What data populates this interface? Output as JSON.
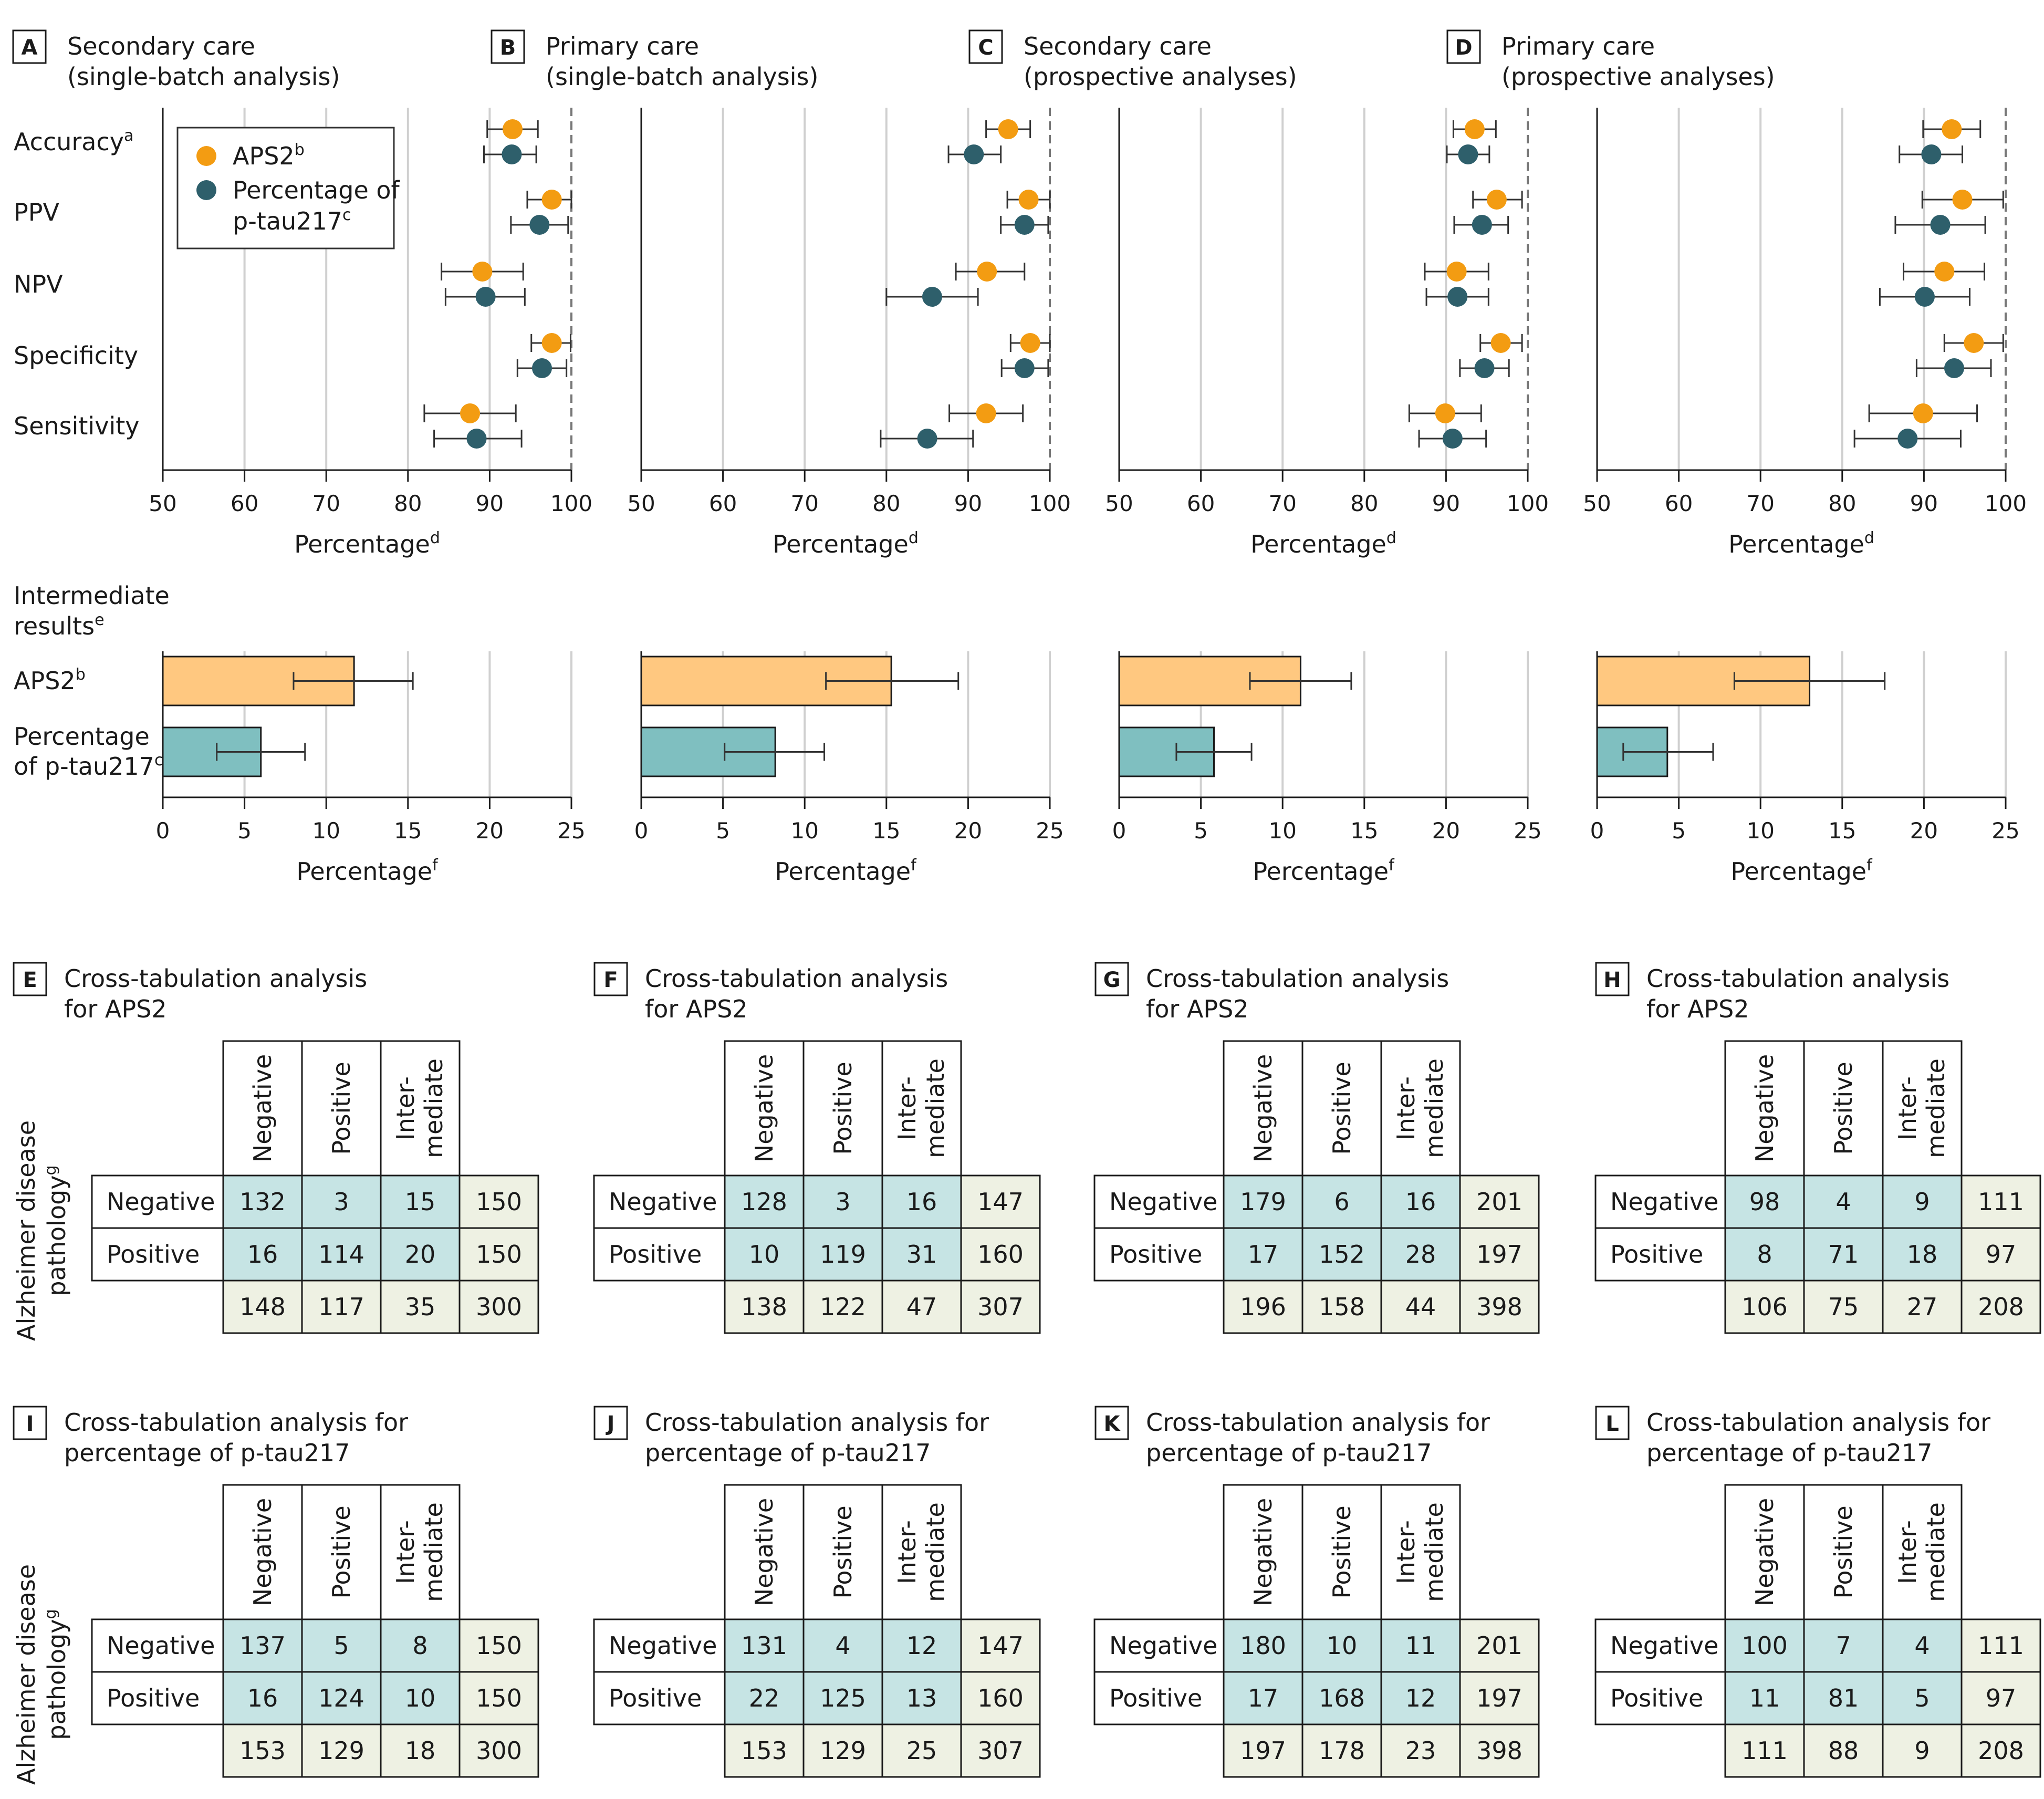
{
  "colors": {
    "aps2": "#F39C12",
    "ptau": "#2E5F6B",
    "aps2_bar": "#FFC880",
    "ptau_bar": "#7FBFC0",
    "table_inner": "#C6E4E4",
    "table_total": "#EEF1E3",
    "grid": "#D0D0D0",
    "axis": "#1a1a1a"
  },
  "chart_data": {
    "metric_labels": [
      "Accuracy",
      "PPV",
      "NPV",
      "Specificity",
      "Sensitivity"
    ],
    "metric_sups": [
      "a",
      "",
      "",
      "",
      ""
    ],
    "legend": {
      "aps2": "APS2",
      "aps2_sup": "b",
      "ptau_line1": "Percentage of",
      "ptau_line2": "p-tau217",
      "ptau_sup": "c"
    },
    "dot_axis": {
      "ticks": [
        "50",
        "60",
        "70",
        "80",
        "90",
        "100"
      ],
      "range": [
        50,
        100
      ],
      "label": "Percentage",
      "label_sup": "d"
    },
    "bar_axis": {
      "ticks": [
        "0",
        "5",
        "10",
        "15",
        "20",
        "25"
      ],
      "range": [
        0,
        25
      ],
      "label": "Percentage",
      "label_sup": "f"
    },
    "intermediate_title": {
      "line1": "Intermediate",
      "line2": "results",
      "sup": "e"
    },
    "bar_labels": {
      "aps2": "APS2",
      "aps2_sup": "b",
      "ptau_line1": "Percentage",
      "ptau_line2": "of p-tau217",
      "ptau_sup": "c"
    },
    "panels": [
      {
        "letter": "A",
        "title1": "Secondary care",
        "title2": "(single-batch analysis)",
        "aps2": [
          [
            92.8,
            89.7,
            95.9
          ],
          [
            97.6,
            94.6,
            100
          ],
          [
            89.1,
            84.1,
            94.1
          ],
          [
            97.6,
            95.1,
            99.9
          ],
          [
            87.6,
            82.0,
            93.2
          ]
        ],
        "ptau": [
          [
            92.7,
            89.3,
            95.7
          ],
          [
            96.1,
            92.6,
            99.6
          ],
          [
            89.5,
            84.6,
            94.3
          ],
          [
            96.4,
            93.4,
            99.4
          ],
          [
            88.4,
            83.2,
            93.9
          ]
        ],
        "bar_aps2": [
          11.7,
          8.0,
          15.3
        ],
        "bar_ptau": [
          6.0,
          3.3,
          8.7
        ]
      },
      {
        "letter": "B",
        "title1": "Primary care",
        "title2": "(single-batch analysis)",
        "aps2": [
          [
            94.9,
            92.2,
            97.6
          ],
          [
            97.4,
            94.8,
            100
          ],
          [
            92.3,
            88.5,
            96.9
          ],
          [
            97.6,
            95.2,
            100
          ],
          [
            92.2,
            87.7,
            96.7
          ]
        ],
        "ptau": [
          [
            90.7,
            87.6,
            94.0
          ],
          [
            96.9,
            94.0,
            99.8
          ],
          [
            85.6,
            80.0,
            91.2
          ],
          [
            96.9,
            94.1,
            99.8
          ],
          [
            85.0,
            79.3,
            90.6
          ]
        ],
        "bar_aps2": [
          15.3,
          11.3,
          19.4
        ],
        "bar_ptau": [
          8.2,
          5.1,
          11.2
        ]
      },
      {
        "letter": "C",
        "title1": "Secondary care",
        "title2": "(prospective analyses)",
        "aps2": [
          [
            93.5,
            90.9,
            96.1
          ],
          [
            96.2,
            93.3,
            99.3
          ],
          [
            91.3,
            87.4,
            95.2
          ],
          [
            96.7,
            94.2,
            99.3
          ],
          [
            89.9,
            85.5,
            94.3
          ]
        ],
        "ptau": [
          [
            92.7,
            90.1,
            95.3
          ],
          [
            94.4,
            91.0,
            97.6
          ],
          [
            91.4,
            87.6,
            95.2
          ],
          [
            94.7,
            91.7,
            97.7
          ],
          [
            90.8,
            86.7,
            94.9
          ]
        ],
        "bar_aps2": [
          11.1,
          8.0,
          14.2
        ],
        "bar_ptau": [
          5.8,
          3.5,
          8.1
        ]
      },
      {
        "letter": "D",
        "title1": "Primary care",
        "title2": "(prospective analyses)",
        "aps2": [
          [
            93.4,
            89.9,
            96.9
          ],
          [
            94.7,
            89.8,
            99.7
          ],
          [
            92.5,
            87.5,
            97.4
          ],
          [
            96.1,
            92.5,
            99.7
          ],
          [
            89.9,
            83.3,
            96.5
          ]
        ],
        "ptau": [
          [
            90.9,
            87.0,
            94.7
          ],
          [
            92.0,
            86.5,
            97.5
          ],
          [
            90.1,
            84.6,
            95.6
          ],
          [
            93.7,
            89.1,
            98.2
          ],
          [
            88.0,
            81.5,
            94.5
          ]
        ],
        "bar_aps2": [
          13.0,
          8.4,
          17.6
        ],
        "bar_ptau": [
          4.3,
          1.6,
          7.1
        ]
      }
    ]
  },
  "tables": {
    "y_title_line1": "Alzheimer disease",
    "y_title_line2": "pathology",
    "y_title_sup": "g",
    "col_headers": [
      "Negative",
      "Positive",
      "Inter-",
      "mediate"
    ],
    "row_labels": [
      "Negative",
      "Positive"
    ],
    "rows": [
      {
        "items": [
          {
            "letter": "E",
            "title1": "Cross-tabulation analysis",
            "title2": "for APS2",
            "cells": [
              [
                "132",
                "3",
                "15",
                "150"
              ],
              [
                "16",
                "114",
                "20",
                "150"
              ],
              [
                "148",
                "117",
                "35",
                "300"
              ]
            ]
          },
          {
            "letter": "F",
            "title1": "Cross-tabulation analysis",
            "title2": "for APS2",
            "cells": [
              [
                "128",
                "3",
                "16",
                "147"
              ],
              [
                "10",
                "119",
                "31",
                "160"
              ],
              [
                "138",
                "122",
                "47",
                "307"
              ]
            ]
          },
          {
            "letter": "G",
            "title1": "Cross-tabulation analysis",
            "title2": "for APS2",
            "cells": [
              [
                "179",
                "6",
                "16",
                "201"
              ],
              [
                "17",
                "152",
                "28",
                "197"
              ],
              [
                "196",
                "158",
                "44",
                "398"
              ]
            ]
          },
          {
            "letter": "H",
            "title1": "Cross-tabulation analysis",
            "title2": "for APS2",
            "cells": [
              [
                "98",
                "4",
                "9",
                "111"
              ],
              [
                "8",
                "71",
                "18",
                "97"
              ],
              [
                "106",
                "75",
                "27",
                "208"
              ]
            ]
          }
        ]
      },
      {
        "items": [
          {
            "letter": "I",
            "title1": "Cross-tabulation analysis for",
            "title2": "percentage of p-tau217",
            "cells": [
              [
                "137",
                "5",
                "8",
                "150"
              ],
              [
                "16",
                "124",
                "10",
                "150"
              ],
              [
                "153",
                "129",
                "18",
                "300"
              ]
            ]
          },
          {
            "letter": "J",
            "title1": "Cross-tabulation analysis for",
            "title2": "percentage of p-tau217",
            "cells": [
              [
                "131",
                "4",
                "12",
                "147"
              ],
              [
                "22",
                "125",
                "13",
                "160"
              ],
              [
                "153",
                "129",
                "25",
                "307"
              ]
            ]
          },
          {
            "letter": "K",
            "title1": "Cross-tabulation analysis for",
            "title2": "percentage of p-tau217",
            "cells": [
              [
                "180",
                "10",
                "11",
                "201"
              ],
              [
                "17",
                "168",
                "12",
                "197"
              ],
              [
                "197",
                "178",
                "23",
                "398"
              ]
            ]
          },
          {
            "letter": "L",
            "title1": "Cross-tabulation analysis for",
            "title2": "percentage of p-tau217",
            "cells": [
              [
                "100",
                "7",
                "4",
                "111"
              ],
              [
                "11",
                "81",
                "5",
                "97"
              ],
              [
                "111",
                "88",
                "9",
                "208"
              ]
            ]
          }
        ]
      }
    ]
  }
}
